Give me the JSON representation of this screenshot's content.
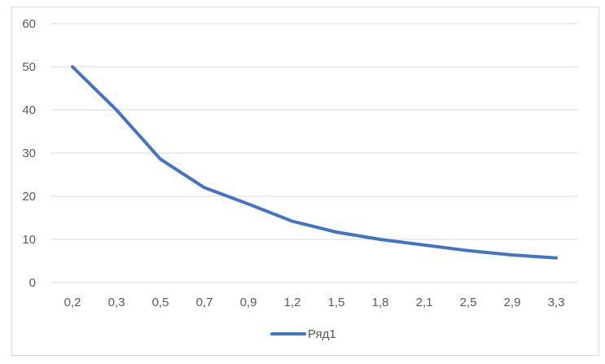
{
  "chart_data": {
    "type": "line",
    "categories": [
      "0,2",
      "0,3",
      "0,5",
      "0,7",
      "0,9",
      "1,2",
      "1,5",
      "1,8",
      "2,1",
      "2,5",
      "2,9",
      "3,3"
    ],
    "series": [
      {
        "name": "Ряд1",
        "values": [
          50.0,
          40.0,
          28.6,
          22.0,
          18.2,
          14.2,
          11.7,
          10.0,
          8.7,
          7.4,
          6.4,
          5.7
        ],
        "color": "#4472c4"
      }
    ],
    "y_ticks": [
      "0",
      "10",
      "20",
      "30",
      "40",
      "50",
      "60"
    ],
    "ylim": [
      0,
      60
    ],
    "grid": "horizontal",
    "legend": "bottom"
  }
}
